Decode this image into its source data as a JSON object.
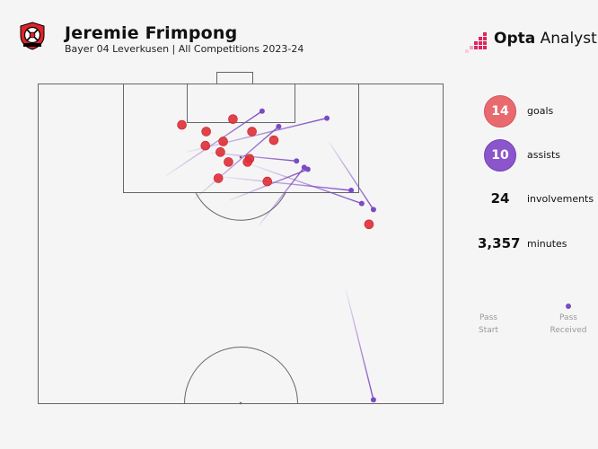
{
  "header": {
    "player_name": "Jeremie Frimpong",
    "subtitle": "Bayer 04 Leverkusen | All Competitions 2023-24",
    "brand": "Opta Analyst",
    "brand_bold": "Opta",
    "brand_light": " Analyst"
  },
  "stats": {
    "goals": {
      "value": "14",
      "label": "goals",
      "color": "#e86a6f"
    },
    "assists": {
      "value": "10",
      "label": "assists",
      "color": "#8b55cc"
    },
    "involvements": {
      "value": "24",
      "label": "involvements"
    },
    "minutes": {
      "value": "3,357",
      "label": "minutes"
    }
  },
  "legend": {
    "start_label_1": "Pass",
    "start_label_2": "Start",
    "end_label_1": "Pass",
    "end_label_2": "Received"
  },
  "colors": {
    "goal": "#e0313a",
    "assist": "#7a4bc4",
    "pitch_line": "#555555",
    "background": "#f6f5f5"
  },
  "chart_data": {
    "type": "scatter",
    "pitch": "half pitch, attacking goal at top",
    "shots": [
      {
        "x": 48.1,
        "y": 89.0
      },
      {
        "x": 35.5,
        "y": 87.2
      },
      {
        "x": 41.5,
        "y": 85.1
      },
      {
        "x": 52.8,
        "y": 85.1
      },
      {
        "x": 58.2,
        "y": 82.4
      },
      {
        "x": 41.3,
        "y": 80.7
      },
      {
        "x": 45.7,
        "y": 82.0
      },
      {
        "x": 45.0,
        "y": 78.7
      },
      {
        "x": 52.2,
        "y": 76.6
      },
      {
        "x": 51.7,
        "y": 75.6
      },
      {
        "x": 47.0,
        "y": 75.6
      },
      {
        "x": 44.5,
        "y": 70.5
      },
      {
        "x": 56.6,
        "y": 69.5
      },
      {
        "x": 81.7,
        "y": 56.1
      }
    ],
    "assists": [
      {
        "start_x": 71.8,
        "start_y": 81.9,
        "end_x": 82.8,
        "end_y": 60.7
      },
      {
        "start_x": 36.6,
        "start_y": 78.7,
        "end_x": 71.3,
        "end_y": 89.3
      },
      {
        "start_x": 42.6,
        "start_y": 78.5,
        "end_x": 63.8,
        "end_y": 75.9
      },
      {
        "start_x": 31.6,
        "start_y": 71.3,
        "end_x": 55.3,
        "end_y": 91.5
      },
      {
        "start_x": 38.5,
        "start_y": 63.9,
        "end_x": 59.4,
        "end_y": 86.7
      },
      {
        "start_x": 47.2,
        "start_y": 63.6,
        "end_x": 66.6,
        "end_y": 73.3
      },
      {
        "start_x": 52.8,
        "start_y": 74.7,
        "end_x": 79.9,
        "end_y": 62.6
      },
      {
        "start_x": 45.7,
        "start_y": 70.9,
        "end_x": 77.3,
        "end_y": 66.7
      },
      {
        "start_x": 54.5,
        "start_y": 55.7,
        "end_x": 65.7,
        "end_y": 73.9
      },
      {
        "start_x": 76.0,
        "start_y": 35.6,
        "end_x": 82.8,
        "end_y": 1.2
      }
    ],
    "grid": false,
    "legend": "right"
  }
}
